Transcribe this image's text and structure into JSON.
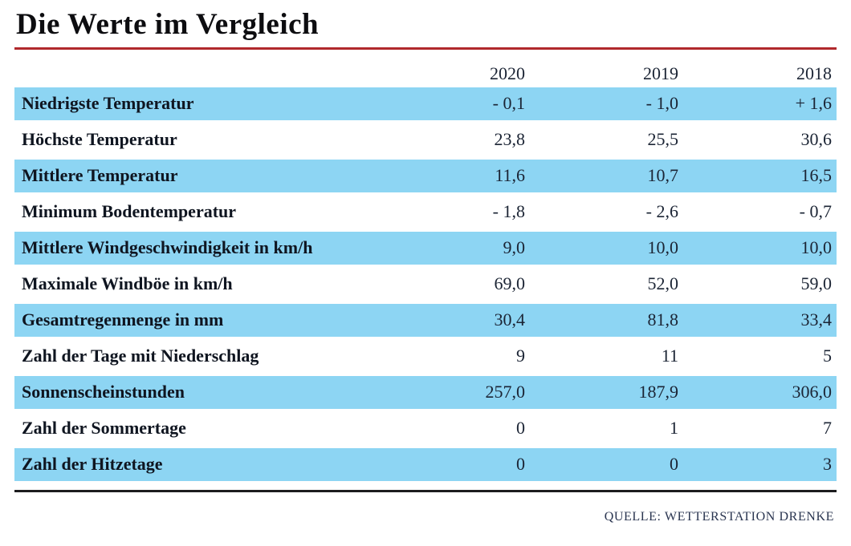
{
  "title": "Die Werte im Vergleich",
  "source_credit": "QUELLE: WETTERSTATION DRENKE",
  "colors": {
    "row_highlight": "#8dd5f3",
    "title_rule": "#b0282c",
    "bottom_rule": "#1c1c1e",
    "text": "#1b2434"
  },
  "chart_data": {
    "type": "table",
    "title": "Die Werte im Vergleich",
    "columns": [
      "2020",
      "2019",
      "2018"
    ],
    "rows": [
      {
        "label": "Niedrigste Temperatur",
        "values": [
          "- 0,1",
          "- 1,0",
          "+ 1,6"
        ]
      },
      {
        "label": "Höchste Temperatur",
        "values": [
          "23,8",
          "25,5",
          "30,6"
        ]
      },
      {
        "label": "Mittlere Temperatur",
        "values": [
          "11,6",
          "10,7",
          "16,5"
        ]
      },
      {
        "label": "Minimum Bodentemperatur",
        "values": [
          "- 1,8",
          "- 2,6",
          "- 0,7"
        ]
      },
      {
        "label": "Mittlere Windgeschwindigkeit in km/h",
        "values": [
          "9,0",
          "10,0",
          "10,0"
        ]
      },
      {
        "label": "Maximale Windböe in km/h",
        "values": [
          "69,0",
          "52,0",
          "59,0"
        ]
      },
      {
        "label": "Gesamtregenmenge in mm",
        "values": [
          "30,4",
          "81,8",
          "33,4"
        ]
      },
      {
        "label": "Zahl der Tage mit Niederschlag",
        "values": [
          "9",
          "11",
          "5"
        ]
      },
      {
        "label": "Sonnenscheinstunden",
        "values": [
          "257,0",
          "187,9",
          "306,0"
        ]
      },
      {
        "label": "Zahl der Sommertage",
        "values": [
          "0",
          "1",
          "7"
        ]
      },
      {
        "label": "Zahl der Hitzetage",
        "values": [
          "0",
          "0",
          "3"
        ]
      }
    ],
    "striped_rows": "odd rows (1st, 3rd, ...) highlighted light blue",
    "legend_position": "none",
    "grid": false
  }
}
